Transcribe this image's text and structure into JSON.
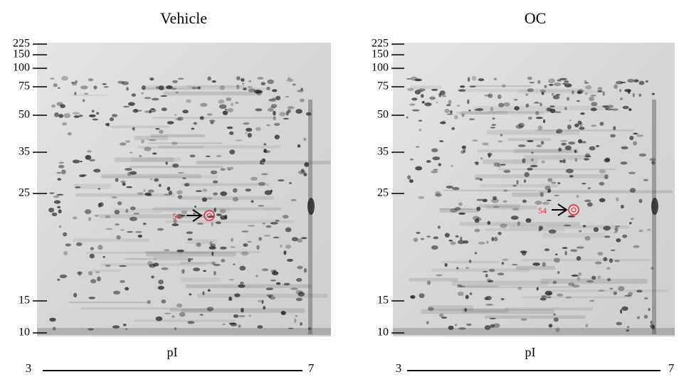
{
  "panels": [
    {
      "title": "Vehicle",
      "mw_labels": [
        225,
        150,
        100,
        75,
        50,
        35,
        25,
        15,
        10
      ],
      "x_label": "pI",
      "range_start": "3",
      "range_end": "7",
      "spot_label": "54"
    },
    {
      "title": "OC",
      "mw_labels": [
        225,
        150,
        100,
        75,
        50,
        35,
        25,
        15,
        10
      ],
      "x_label": "pI",
      "range_start": "3",
      "range_end": "7",
      "spot_label": "54"
    }
  ]
}
